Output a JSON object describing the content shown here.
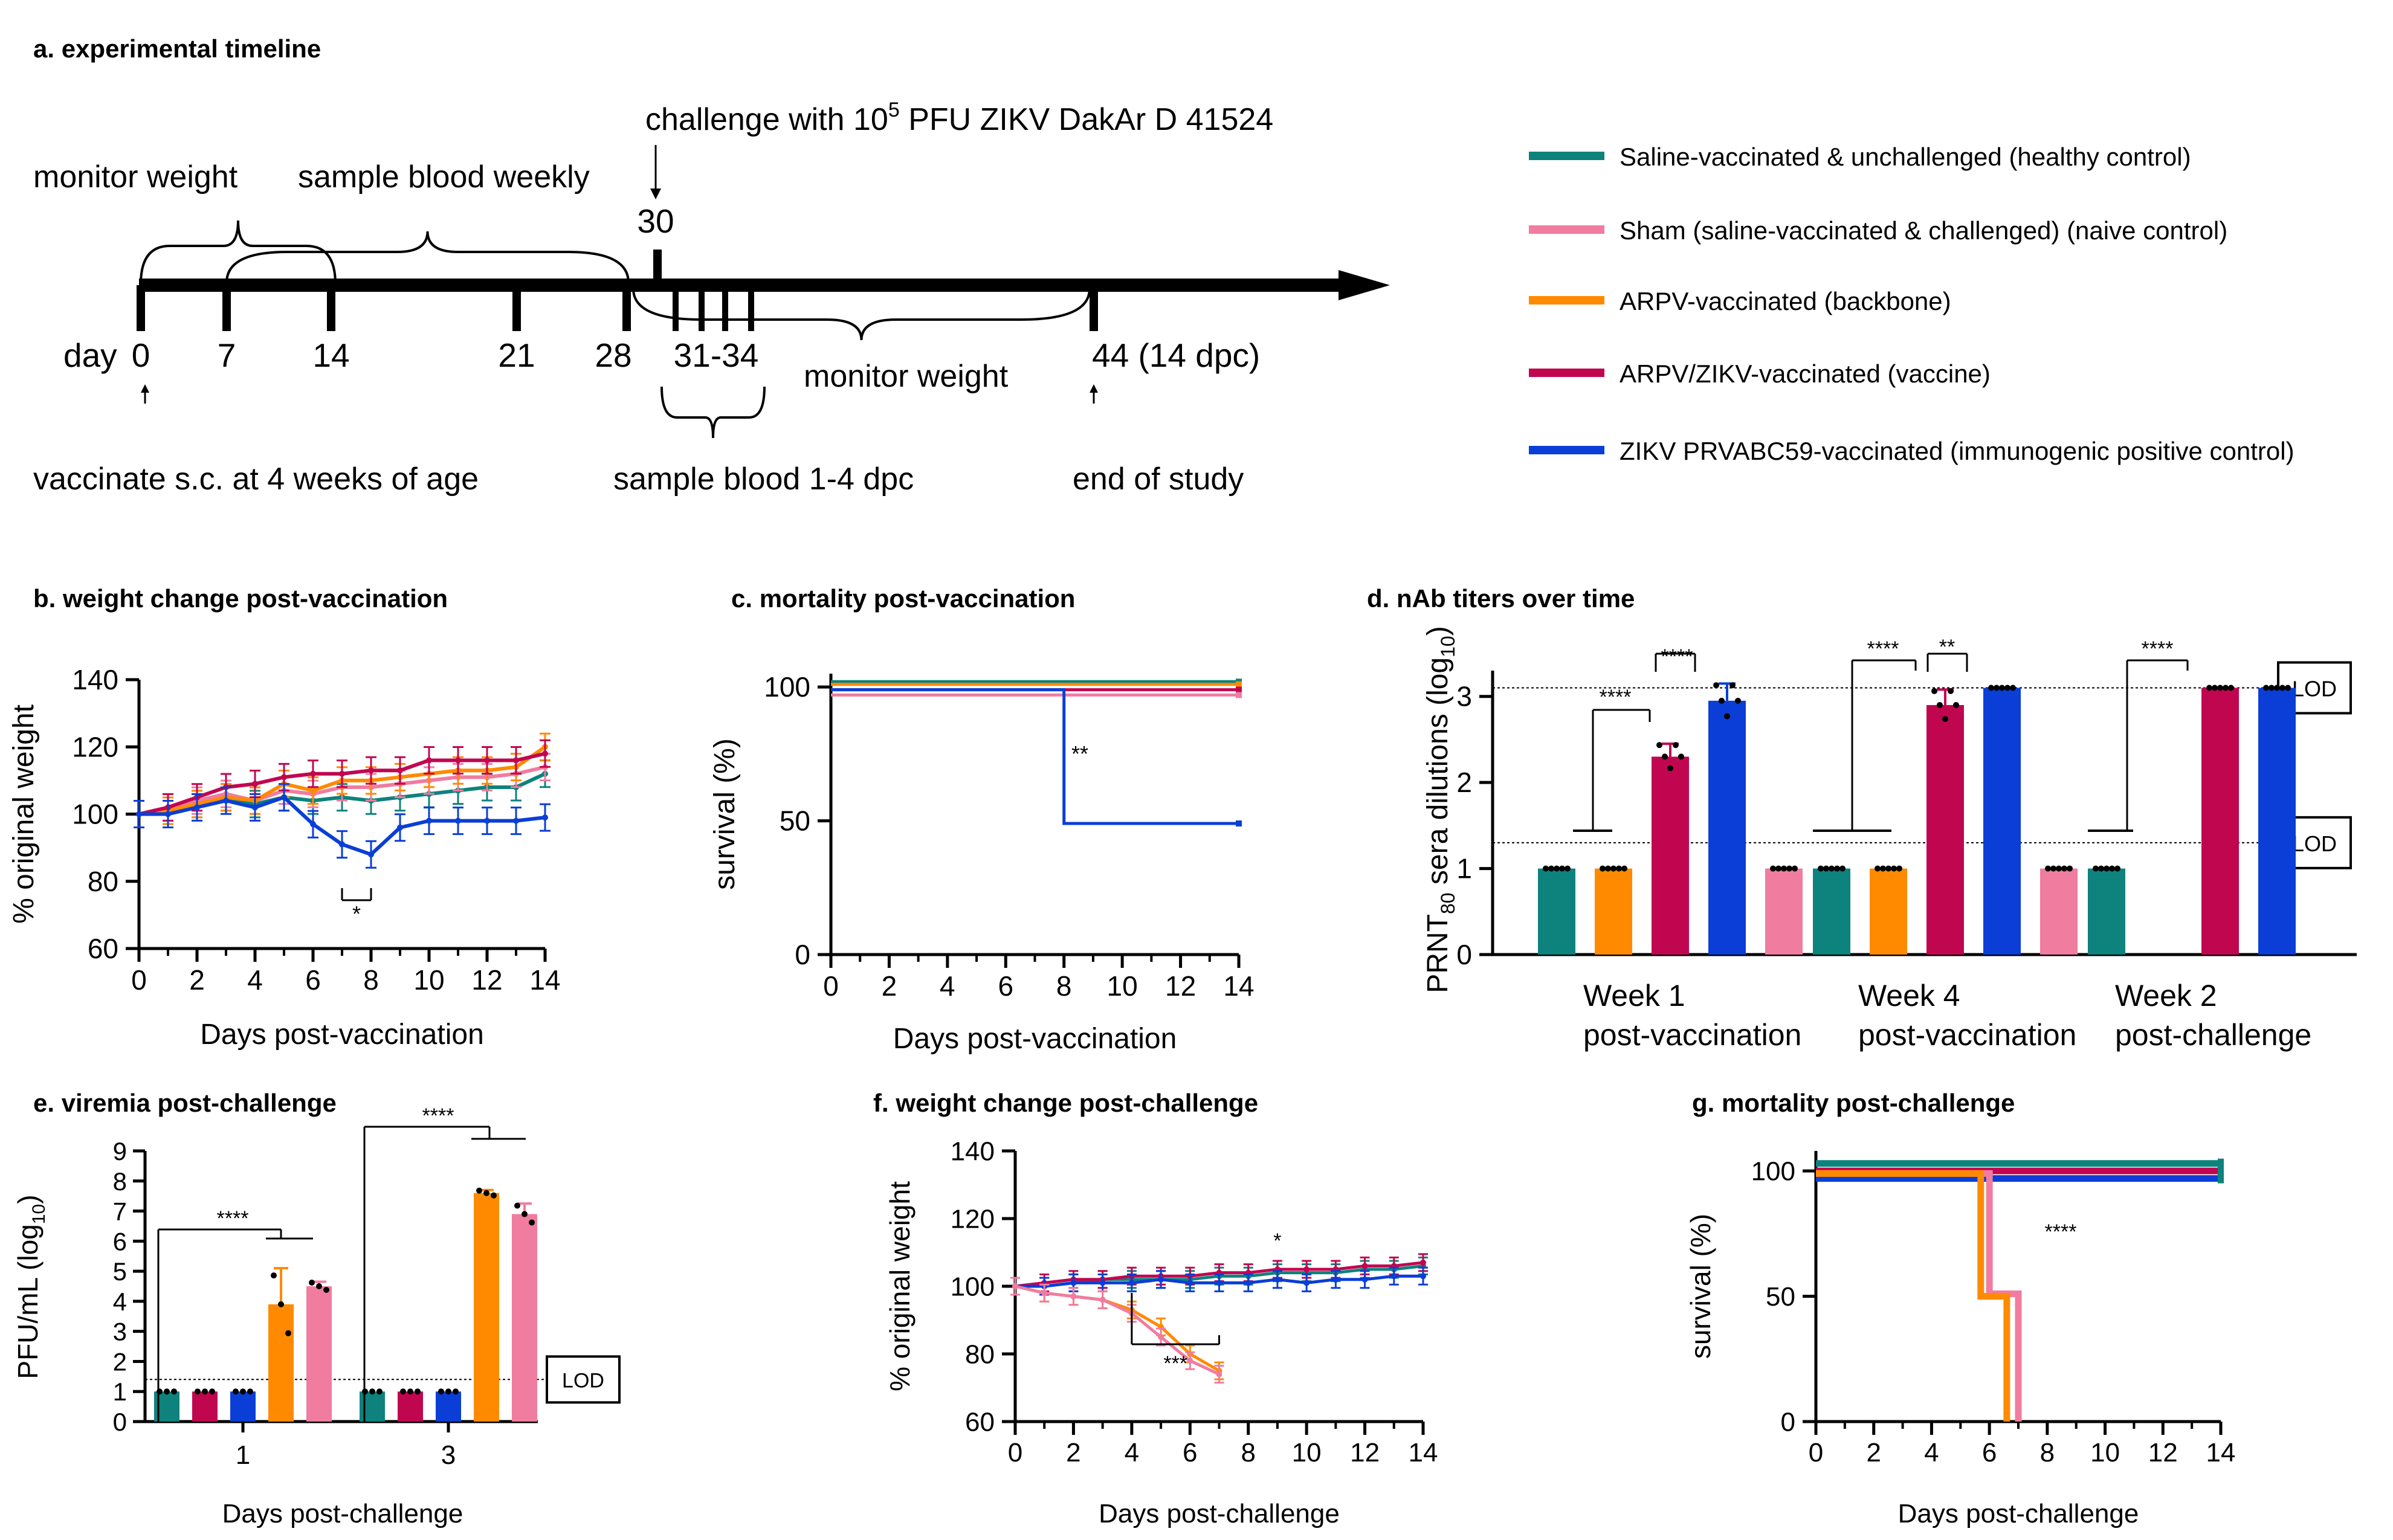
{
  "colors": {
    "teal": "#0e827d",
    "pink": "#f07ca0",
    "orange": "#ff8a00",
    "crimson": "#c10650",
    "blue": "#0a3ed6",
    "black": "#000000"
  },
  "panel_a": {
    "title": "a. experimental timeline",
    "day_label": "day",
    "days": [
      "0",
      "7",
      "14",
      "21",
      "28",
      "30",
      "31-34",
      "44 (14 dpc)"
    ],
    "monitor_weight": "monitor weight",
    "sample_weekly": "sample blood weekly",
    "challenge_text": "challenge with 10",
    "challenge_exp": "5",
    "challenge_rest": " PFU ZIKV DakAr D 41524",
    "monitor_weight_2": "monitor weight",
    "vaccinate": "vaccinate s.c. at 4 weeks of age",
    "sample_dpc": "sample blood 1-4 dpc",
    "end_study": "end of study"
  },
  "legend": [
    {
      "label": "Saline-vaccinated & unchallenged (healthy control)",
      "color": "#0e827d"
    },
    {
      "label": "Sham (saline-vaccinated & challenged) (naive control)",
      "color": "#f07ca0"
    },
    {
      "label": "ARPV-vaccinated (backbone)",
      "color": "#ff8a00"
    },
    {
      "label": "ARPV/ZIKV-vaccinated (vaccine)",
      "color": "#c10650"
    },
    {
      "label": "ZIKV PRVABC59-vaccinated (immunogenic positive control)",
      "color": "#0a3ed6"
    }
  ],
  "chart_data": [
    {
      "id": "b",
      "type": "line",
      "title": "b. weight change post-vaccination",
      "xlabel": "Days post-vaccination",
      "ylabel": "% original weight",
      "xlim": [
        0,
        14
      ],
      "ylim": [
        60,
        140
      ],
      "xticks": [
        "0",
        "2",
        "4",
        "6",
        "8",
        "10",
        "12",
        "14"
      ],
      "yticks": [
        "60",
        "80",
        "100",
        "120",
        "140"
      ],
      "x": [
        0,
        1,
        2,
        3,
        4,
        5,
        6,
        7,
        8,
        9,
        10,
        11,
        12,
        13,
        14
      ],
      "series": [
        {
          "name": "Saline-vaccinated & unchallenged",
          "color": "#0e827d",
          "values": [
            100,
            101,
            103,
            105,
            103,
            105,
            104,
            105,
            104,
            105,
            106,
            107,
            108,
            108,
            112
          ]
        },
        {
          "name": "Sham",
          "color": "#f07ca0",
          "values": [
            100,
            102,
            104,
            106,
            104,
            107,
            106,
            108,
            108,
            109,
            110,
            111,
            111,
            112,
            114
          ]
        },
        {
          "name": "ARPV-vaccinated",
          "color": "#ff8a00",
          "values": [
            100,
            101,
            103,
            105,
            104,
            109,
            107,
            110,
            110,
            111,
            112,
            113,
            113,
            114,
            120
          ]
        },
        {
          "name": "ARPV/ZIKV-vaccinated",
          "color": "#c10650",
          "values": [
            100,
            102,
            105,
            108,
            109,
            111,
            112,
            112,
            113,
            113,
            116,
            116,
            116,
            116,
            118
          ]
        },
        {
          "name": "ZIKV PRVABC59-vaccinated",
          "color": "#0a3ed6",
          "values": [
            100,
            100,
            102,
            104,
            102,
            105,
            97,
            91,
            88,
            96,
            98,
            98,
            98,
            98,
            99
          ]
        }
      ],
      "annotation": "*"
    },
    {
      "id": "c",
      "type": "line",
      "title": "c. mortality post-vaccination",
      "xlabel": "Days post-vaccination",
      "ylabel": "survival (%)",
      "xlim": [
        0,
        14
      ],
      "ylim": [
        0,
        100
      ],
      "xticks": [
        "0",
        "2",
        "4",
        "6",
        "8",
        "10",
        "12",
        "14"
      ],
      "yticks": [
        "0",
        "50",
        "100"
      ],
      "series": [
        {
          "name": "Saline-vaccinated & unchallenged",
          "color": "#0e827d",
          "x": [
            0,
            14
          ],
          "values": [
            102,
            102
          ]
        },
        {
          "name": "ARPV-vaccinated",
          "color": "#ff8a00",
          "x": [
            0,
            14
          ],
          "values": [
            101,
            101
          ]
        },
        {
          "name": "ARPV/ZIKV-vaccinated",
          "color": "#c10650",
          "x": [
            0,
            14
          ],
          "values": [
            99,
            99
          ]
        },
        {
          "name": "Sham",
          "color": "#f07ca0",
          "x": [
            0,
            14
          ],
          "values": [
            97,
            97
          ]
        },
        {
          "name": "ZIKV PRVABC59-vaccinated",
          "color": "#0a3ed6",
          "x": [
            0,
            8,
            8,
            14
          ],
          "values": [
            99,
            99,
            49,
            49
          ]
        }
      ],
      "annotation": "**"
    },
    {
      "id": "d",
      "type": "bar",
      "title": "d. nAb titers over time",
      "ylabel_main": "PRNT",
      "ylabel_sub": "80",
      "ylabel_rest": " sera dilutions (log",
      "ylabel_sub2": "10",
      "ylabel_end": ")",
      "ylim": [
        0,
        3.3
      ],
      "yticks": [
        "0",
        "1",
        "2",
        "3"
      ],
      "lod_values": [
        3.1,
        1.3
      ],
      "lod_label": "LOD",
      "groups": [
        {
          "label1": "Week 1",
          "label2": "post-vaccination",
          "values": [
            1,
            1,
            2.3,
            2.95,
            1
          ],
          "errors": [
            0,
            0,
            0.15,
            0.2,
            0
          ]
        },
        {
          "label1": "Week 4",
          "label2": "post-vaccination",
          "values": [
            1,
            1,
            2.9,
            3.1,
            1
          ],
          "errors": [
            0,
            0,
            0.18,
            0,
            0
          ]
        },
        {
          "label1": "Week 2",
          "label2": "post-challenge",
          "values": [
            1,
            null,
            3.1,
            3.1,
            null
          ],
          "errors": [
            0,
            0,
            0,
            0,
            0
          ]
        }
      ],
      "series_order": [
        "Saline-vaccinated & unchallenged",
        "ARPV-vaccinated",
        "ARPV/ZIKV-vaccinated",
        "ZIKV PRVABC59-vaccinated",
        "Sham"
      ],
      "series_colors": [
        "#0e827d",
        "#ff8a00",
        "#c10650",
        "#0a3ed6",
        "#f07ca0"
      ],
      "annotations": [
        "****",
        "****",
        "****",
        "**",
        "****"
      ]
    },
    {
      "id": "e",
      "type": "bar",
      "title": "e. viremia post-challenge",
      "xlabel": "Days post-challenge",
      "ylabel_main": "PFU/mL (log",
      "ylabel_sub": "10",
      "ylabel_end": ")",
      "ylim": [
        0,
        9
      ],
      "yticks": [
        "0",
        "1",
        "2",
        "3",
        "4",
        "5",
        "6",
        "7",
        "8",
        "9"
      ],
      "lod_value": 1.4,
      "lod_label": "LOD",
      "categories": [
        "1",
        "3"
      ],
      "series_order": [
        "Saline-vaccinated & unchallenged",
        "ARPV/ZIKV-vaccinated",
        "ZIKV PRVABC59-vaccinated",
        "ARPV-vaccinated",
        "Sham"
      ],
      "series_colors": [
        "#0e827d",
        "#c10650",
        "#0a3ed6",
        "#ff8a00",
        "#f07ca0"
      ],
      "values": [
        [
          1,
          1,
          1,
          3.9,
          4.5
        ],
        [
          1,
          1,
          1,
          7.6,
          6.9
        ]
      ],
      "errors": [
        [
          0,
          0,
          0,
          1.2,
          0.15
        ],
        [
          0,
          0,
          0,
          0.1,
          0.35
        ]
      ],
      "annotations": [
        "****",
        "****"
      ]
    },
    {
      "id": "f",
      "type": "line",
      "title": "f. weight change post-challenge",
      "xlabel": "Days post-challenge",
      "ylabel": "% original weight",
      "xlim": [
        0,
        14
      ],
      "ylim": [
        60,
        140
      ],
      "xticks": [
        "0",
        "2",
        "4",
        "6",
        "8",
        "10",
        "12",
        "14"
      ],
      "yticks": [
        "60",
        "80",
        "100",
        "120",
        "140"
      ],
      "series": [
        {
          "name": "Saline-vaccinated & unchallenged",
          "color": "#0e827d",
          "x": [
            0,
            1,
            2,
            3,
            4,
            5,
            6,
            7,
            8,
            9,
            10,
            11,
            12,
            13,
            14
          ],
          "values": [
            100,
            100,
            101,
            102,
            102,
            102,
            102,
            103,
            103,
            104,
            104,
            104,
            105,
            105,
            106
          ]
        },
        {
          "name": "ARPV/ZIKV-vaccinated",
          "color": "#c10650",
          "x": [
            0,
            1,
            2,
            3,
            4,
            5,
            6,
            7,
            8,
            9,
            10,
            11,
            12,
            13,
            14
          ],
          "values": [
            100,
            101,
            102,
            102,
            103,
            103,
            103,
            104,
            104,
            105,
            105,
            105,
            106,
            106,
            107
          ]
        },
        {
          "name": "ZIKV PRVABC59-vaccinated",
          "color": "#0a3ed6",
          "x": [
            0,
            1,
            2,
            3,
            4,
            5,
            6,
            7,
            8,
            9,
            10,
            11,
            12,
            13,
            14
          ],
          "values": [
            100,
            100,
            101,
            101,
            101,
            102,
            101,
            101,
            101,
            102,
            101,
            102,
            102,
            103,
            103
          ]
        },
        {
          "name": "ARPV-vaccinated",
          "color": "#ff8a00",
          "x": [
            0,
            1,
            2,
            3,
            4,
            5,
            6,
            7
          ],
          "values": [
            100,
            98,
            97,
            96,
            93,
            88,
            80,
            75
          ]
        },
        {
          "name": "Sham",
          "color": "#f07ca0",
          "x": [
            0,
            1,
            2,
            3,
            4,
            5,
            6,
            7
          ],
          "values": [
            100,
            98,
            97,
            96,
            92,
            85,
            78,
            74
          ]
        }
      ],
      "annotations": [
        "*",
        "***"
      ]
    },
    {
      "id": "g",
      "type": "line",
      "title": "g. mortality post-challenge",
      "xlabel": "Days post-challenge",
      "ylabel": "survival (%)",
      "xlim": [
        0,
        14
      ],
      "ylim": [
        0,
        100
      ],
      "xticks": [
        "0",
        "2",
        "4",
        "6",
        "8",
        "10",
        "12",
        "14"
      ],
      "yticks": [
        "0",
        "50",
        "100"
      ],
      "series": [
        {
          "name": "Saline-vaccinated & unchallenged",
          "color": "#0e827d",
          "x": [
            0,
            14
          ],
          "values": [
            103,
            103
          ]
        },
        {
          "name": "ARPV/ZIKV-vaccinated",
          "color": "#c10650",
          "x": [
            0,
            14
          ],
          "values": [
            100,
            100
          ]
        },
        {
          "name": "ZIKV PRVABC59-vaccinated",
          "color": "#0a3ed6",
          "x": [
            0,
            14
          ],
          "values": [
            97,
            97
          ]
        },
        {
          "name": "Sham",
          "color": "#f07ca0",
          "x": [
            0,
            6,
            6,
            7,
            7
          ],
          "values": [
            99,
            99,
            51,
            51,
            0
          ]
        },
        {
          "name": "ARPV-vaccinated",
          "color": "#ff8a00",
          "x": [
            0,
            5.7,
            5.7,
            6.6,
            6.6
          ],
          "values": [
            99,
            99,
            50,
            50,
            0
          ]
        }
      ],
      "annotation": "****"
    }
  ]
}
